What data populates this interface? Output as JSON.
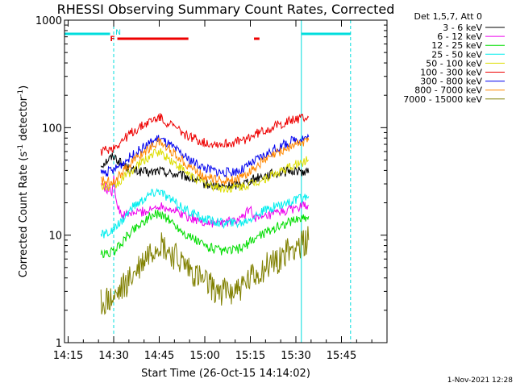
{
  "chart_data": {
    "type": "line",
    "title": "RHESSI Observing Summary Count Rates, Corrected",
    "xlabel": "Start Time (26-Oct-15 14:14:02)",
    "ylabel": "Corrected Count Rate (s",
    "ylabel_sup1": "-1",
    "ylabel_mid": " detector",
    "ylabel_sup2": "-1",
    "ylabel_end": ")",
    "y_scale": "log",
    "ylim": [
      1,
      1000
    ],
    "xlim": [
      14.23,
      16.0
    ],
    "x_ticks": [
      {
        "value": 14.25,
        "label": "14:15"
      },
      {
        "value": 14.5,
        "label": "14:30"
      },
      {
        "value": 14.75,
        "label": "14:45"
      },
      {
        "value": 15.0,
        "label": "15:00"
      },
      {
        "value": 15.25,
        "label": "15:15"
      },
      {
        "value": 15.5,
        "label": "15:30"
      },
      {
        "value": 15.75,
        "label": "15:45"
      }
    ],
    "y_ticks": [
      {
        "value": 1,
        "label": "1"
      },
      {
        "value": 10,
        "label": "10"
      },
      {
        "value": 100,
        "label": "100"
      },
      {
        "value": 1000,
        "label": "1000"
      }
    ],
    "legend_title": "Det 1,5,7, Att 0",
    "legend_placement": "right",
    "series": [
      {
        "name": "3 - 6 keV",
        "color": "#000000",
        "points": [
          [
            14.43,
            45
          ],
          [
            14.5,
            55
          ],
          [
            14.55,
            45
          ],
          [
            14.6,
            40
          ],
          [
            14.7,
            38
          ],
          [
            14.75,
            40
          ],
          [
            14.8,
            38
          ],
          [
            14.9,
            35
          ],
          [
            15.0,
            30
          ],
          [
            15.1,
            28
          ],
          [
            15.2,
            30
          ],
          [
            15.3,
            35
          ],
          [
            15.4,
            38
          ],
          [
            15.5,
            40
          ],
          [
            15.57,
            38
          ]
        ]
      },
      {
        "name": "6 - 12 keV",
        "color": "#ee00ee",
        "points": [
          [
            14.43,
            30
          ],
          [
            14.49,
            25
          ],
          [
            14.5,
            35
          ],
          [
            14.52,
            18
          ],
          [
            14.55,
            15
          ],
          [
            14.6,
            16
          ],
          [
            14.7,
            17
          ],
          [
            14.75,
            19
          ],
          [
            14.8,
            18
          ],
          [
            14.9,
            15
          ],
          [
            15.0,
            13
          ],
          [
            15.1,
            13
          ],
          [
            15.2,
            14
          ],
          [
            15.25,
            18
          ],
          [
            15.27,
            15
          ],
          [
            15.3,
            14
          ],
          [
            15.4,
            16
          ],
          [
            15.5,
            18
          ],
          [
            15.57,
            19
          ]
        ]
      },
      {
        "name": "12 - 25 keV",
        "color": "#00dd00",
        "points": [
          [
            14.43,
            6.5
          ],
          [
            14.5,
            7
          ],
          [
            14.6,
            11
          ],
          [
            14.7,
            15
          ],
          [
            14.75,
            16
          ],
          [
            14.8,
            14
          ],
          [
            14.9,
            10
          ],
          [
            15.0,
            8
          ],
          [
            15.1,
            7
          ],
          [
            15.2,
            7.5
          ],
          [
            15.3,
            10
          ],
          [
            15.4,
            12
          ],
          [
            15.5,
            14
          ],
          [
            15.57,
            15
          ]
        ]
      },
      {
        "name": "25 - 50 keV",
        "color": "#00eeee",
        "points": [
          [
            14.43,
            10
          ],
          [
            14.5,
            11
          ],
          [
            14.6,
            18
          ],
          [
            14.7,
            24
          ],
          [
            14.75,
            26
          ],
          [
            14.8,
            22
          ],
          [
            14.9,
            17
          ],
          [
            15.0,
            14
          ],
          [
            15.1,
            13
          ],
          [
            15.2,
            13
          ],
          [
            15.3,
            16
          ],
          [
            15.4,
            19
          ],
          [
            15.5,
            21
          ],
          [
            15.57,
            23
          ]
        ]
      },
      {
        "name": "50 - 100 keV",
        "color": "#dddd00",
        "points": [
          [
            14.43,
            28
          ],
          [
            14.5,
            28
          ],
          [
            14.6,
            40
          ],
          [
            14.7,
            55
          ],
          [
            14.75,
            60
          ],
          [
            14.8,
            52
          ],
          [
            14.9,
            38
          ],
          [
            15.0,
            30
          ],
          [
            15.1,
            27
          ],
          [
            15.2,
            28
          ],
          [
            15.3,
            32
          ],
          [
            15.4,
            38
          ],
          [
            15.5,
            45
          ],
          [
            15.57,
            50
          ]
        ]
      },
      {
        "name": "100 - 300 keV",
        "color": "#ee0000",
        "points": [
          [
            14.43,
            60
          ],
          [
            14.5,
            65
          ],
          [
            14.6,
            90
          ],
          [
            14.7,
            115
          ],
          [
            14.75,
            125
          ],
          [
            14.8,
            110
          ],
          [
            14.9,
            85
          ],
          [
            15.0,
            72
          ],
          [
            15.1,
            70
          ],
          [
            15.2,
            75
          ],
          [
            15.3,
            90
          ],
          [
            15.4,
            105
          ],
          [
            15.5,
            120
          ],
          [
            15.57,
            125
          ]
        ]
      },
      {
        "name": "300 - 800 keV",
        "color": "#0000ee",
        "points": [
          [
            14.43,
            38
          ],
          [
            14.5,
            40
          ],
          [
            14.6,
            55
          ],
          [
            14.7,
            72
          ],
          [
            14.75,
            80
          ],
          [
            14.8,
            70
          ],
          [
            14.9,
            52
          ],
          [
            15.0,
            42
          ],
          [
            15.1,
            38
          ],
          [
            15.2,
            40
          ],
          [
            15.3,
            52
          ],
          [
            15.4,
            65
          ],
          [
            15.5,
            78
          ],
          [
            15.57,
            82
          ]
        ]
      },
      {
        "name": "800 - 7000 keV",
        "color": "#ff8800",
        "points": [
          [
            14.43,
            32
          ],
          [
            14.5,
            32
          ],
          [
            14.6,
            48
          ],
          [
            14.7,
            66
          ],
          [
            14.75,
            74
          ],
          [
            14.8,
            64
          ],
          [
            14.9,
            46
          ],
          [
            15.0,
            35
          ],
          [
            15.1,
            32
          ],
          [
            15.2,
            34
          ],
          [
            15.3,
            46
          ],
          [
            15.4,
            58
          ],
          [
            15.5,
            70
          ],
          [
            15.57,
            76
          ]
        ]
      },
      {
        "name": "7000 - 15000 keV",
        "color": "#808000",
        "points": [
          [
            14.43,
            2.3
          ],
          [
            14.5,
            2.5
          ],
          [
            14.6,
            4
          ],
          [
            14.7,
            7
          ],
          [
            14.75,
            8.5
          ],
          [
            14.8,
            7
          ],
          [
            14.9,
            5
          ],
          [
            15.0,
            3.5
          ],
          [
            15.1,
            3
          ],
          [
            15.2,
            3.2
          ],
          [
            15.3,
            4.5
          ],
          [
            15.4,
            6
          ],
          [
            15.5,
            8
          ],
          [
            15.57,
            9
          ]
        ]
      }
    ],
    "annotations": [
      {
        "text": "F",
        "color": "#ee0000"
      },
      {
        "text": "N",
        "color": "#00dddd"
      }
    ]
  },
  "footer_date": "1-Nov-2021 12:28"
}
